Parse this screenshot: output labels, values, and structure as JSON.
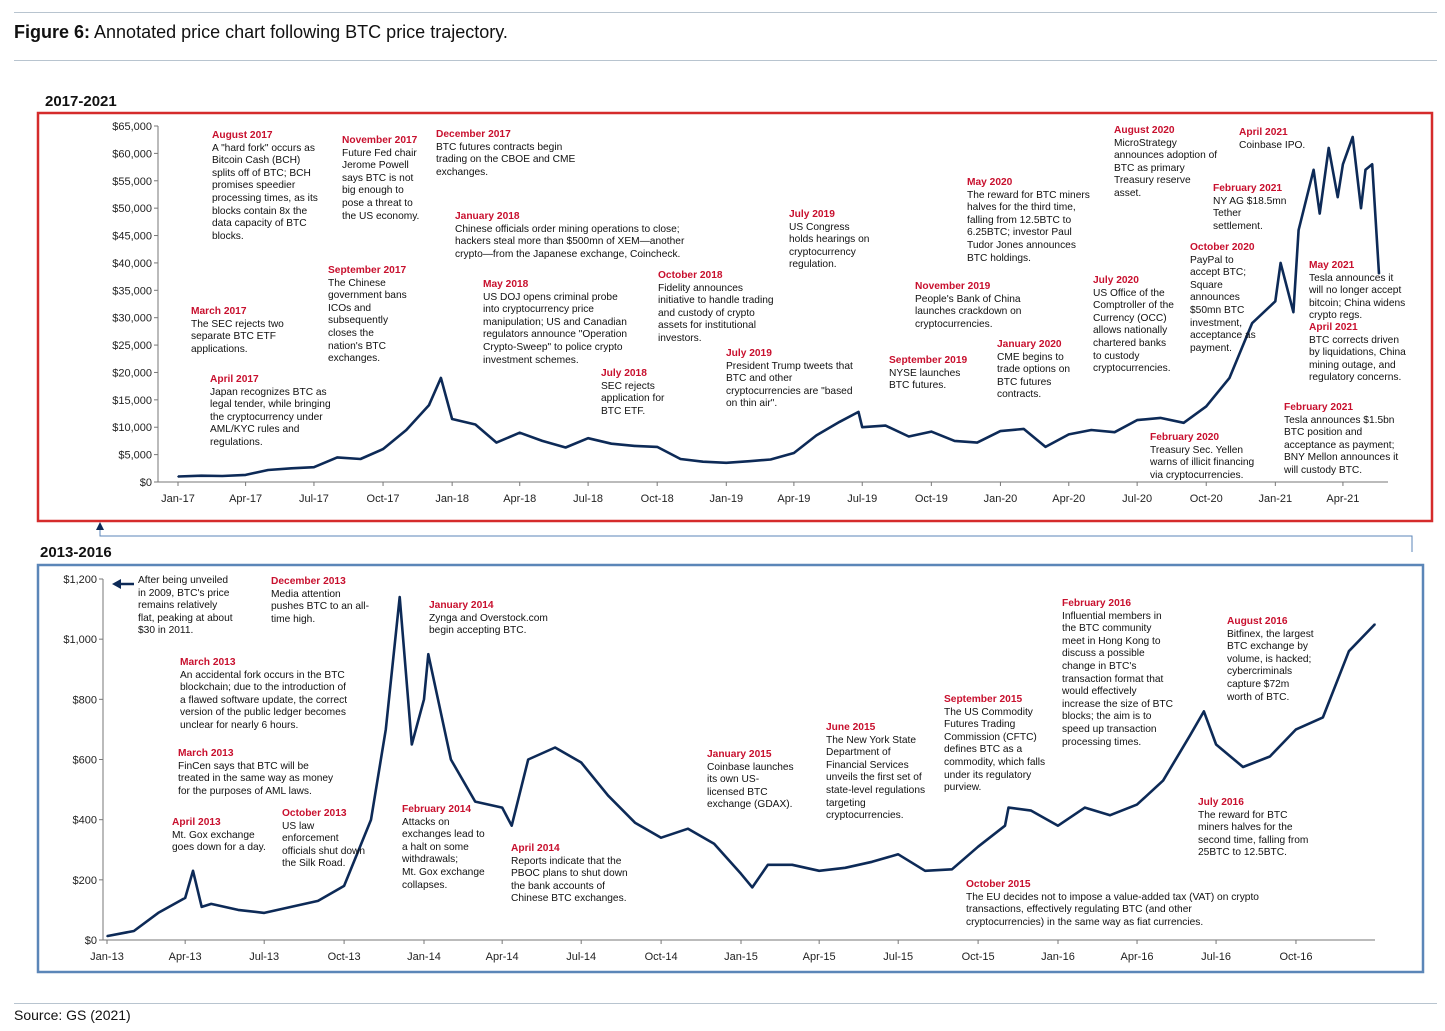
{
  "figure": {
    "label": "Figure 6:",
    "title": "Annotated price chart following BTC price trajectory.",
    "source": "Source: GS (2021)"
  },
  "colors": {
    "line": "#0d2a57",
    "annotation_date": "#c8102e",
    "top_border": "#d52b2b",
    "bottom_border": "#5b86b8"
  },
  "chart_data": [
    {
      "type": "line",
      "panel_label": "2017-2021",
      "x_ticks": [
        "Jan-17",
        "Apr-17",
        "Jul-17",
        "Oct-17",
        "Jan-18",
        "Apr-18",
        "Jul-18",
        "Oct-18",
        "Jan-19",
        "Apr-19",
        "Jul-19",
        "Oct-19",
        "Jan-20",
        "Apr-20",
        "Jul-20",
        "Oct-20",
        "Jan-21",
        "Apr-21"
      ],
      "y_ticks": [
        "$0",
        "$5,000",
        "$10,000",
        "$15,000",
        "$20,000",
        "$25,000",
        "$30,000",
        "$35,000",
        "$40,000",
        "$45,000",
        "$50,000",
        "$55,000",
        "$60,000",
        "$65,000"
      ],
      "ylim": [
        0,
        65000
      ],
      "xlim": [
        "2017-01",
        "2021-05"
      ],
      "series": [
        {
          "x": [
            "2017-01",
            "2017-02",
            "2017-03",
            "2017-04",
            "2017-05",
            "2017-06",
            "2017-07",
            "2017-08",
            "2017-09",
            "2017-10",
            "2017-11",
            "2017-12",
            "2017-12-17",
            "2018-01",
            "2018-02",
            "2018-03",
            "2018-04",
            "2018-05",
            "2018-06",
            "2018-07",
            "2018-08",
            "2018-09",
            "2018-10",
            "2018-11",
            "2018-12",
            "2019-01",
            "2019-02",
            "2019-03",
            "2019-04",
            "2019-05",
            "2019-06",
            "2019-06-26",
            "2019-07",
            "2019-08",
            "2019-09",
            "2019-10",
            "2019-11",
            "2019-12",
            "2020-01",
            "2020-02",
            "2020-03",
            "2020-04",
            "2020-05",
            "2020-06",
            "2020-07",
            "2020-08",
            "2020-09",
            "2020-10",
            "2020-11",
            "2020-12",
            "2021-01",
            "2021-01-08",
            "2021-01-25",
            "2021-02",
            "2021-02-21",
            "2021-03",
            "2021-03-13",
            "2021-03-25",
            "2021-04",
            "2021-04-14",
            "2021-04-25",
            "2021-05",
            "2021-05-10",
            "2021-05-19"
          ],
          "values": [
            1000,
            1150,
            1100,
            1300,
            2200,
            2500,
            2700,
            4500,
            4200,
            6000,
            9500,
            14000,
            19000,
            11500,
            10500,
            7200,
            9000,
            7500,
            6300,
            8000,
            7000,
            6600,
            6400,
            4200,
            3700,
            3500,
            3800,
            4100,
            5300,
            8500,
            11000,
            12800,
            10000,
            10300,
            8300,
            9200,
            7500,
            7200,
            9300,
            9700,
            6400,
            8700,
            9500,
            9100,
            11300,
            11700,
            10800,
            13800,
            19000,
            29000,
            33000,
            40000,
            31000,
            46000,
            57000,
            49000,
            61000,
            52000,
            58000,
            63000,
            50000,
            57000,
            58000,
            38000
          ]
        }
      ],
      "annotations": [
        {
          "date": "August 2017",
          "text": "A \"hard fork\" occurs as\nBitcoin Cash (BCH)\nsplits off of BTC; BCH\npromises speedier\nprocessing times, as its\nblocks contain 8x the\ndata capacity of BTC\nblocks."
        },
        {
          "date": "November 2017",
          "text": "Future Fed chair\nJerome Powell\nsays BTC is not\nbig enough to\npose a threat to\nthe US economy."
        },
        {
          "date": "December 2017",
          "text": "BTC futures contracts begin\ntrading on the CBOE and CME\nexchanges."
        },
        {
          "date": "January 2018",
          "text": "Chinese officials order mining operations to close;\nhackers steal more than $500mn of XEM—another\ncrypto—from the Japanese exchange, Coincheck."
        },
        {
          "date": "September 2017",
          "text": "The Chinese\ngovernment bans\nICOs and\nsubsequently\ncloses the\nnation's BTC\nexchanges."
        },
        {
          "date": "March  2017",
          "text": "The SEC rejects two\nseparate BTC ETF\napplications."
        },
        {
          "date": "April 2017",
          "text": "Japan recognizes BTC as\nlegal tender, while bringing\nthe cryptocurrency under\nAML/KYC rules and\nregulations."
        },
        {
          "date": "May 2018",
          "text": "US DOJ opens criminal probe\ninto cryptocurrency price\nmanipulation; US and Canadian\nregulators announce \"Operation\nCrypto-Sweep\" to police crypto\ninvestment schemes."
        },
        {
          "date": "July 2018",
          "text": "SEC rejects\napplication for\nBTC ETF."
        },
        {
          "date": "October 2018",
          "text": "Fidelity announces\ninitiative to handle trading\nand custody of crypto\nassets for institutional\ninvestors."
        },
        {
          "date": "July 2019",
          "text": "President Trump tweets that\nBTC and other\ncryptocurrencies are \"based\non thin air\"."
        },
        {
          "date": "July 2019",
          "text": "US Congress\nholds hearings on\ncryptocurrency\nregulation."
        },
        {
          "date": "September 2019",
          "text": "NYSE launches\nBTC futures."
        },
        {
          "date": "November 2019",
          "text": "People's Bank of China\nlaunches crackdown on\ncryptocurrencies."
        },
        {
          "date": "January 2020",
          "text": "CME begins to\ntrade options on\nBTC futures\ncontracts."
        },
        {
          "date": "May 2020",
          "text": "The reward for BTC miners\nhalves for the third time,\nfalling from 12.5BTC to\n6.25BTC; investor Paul\nTudor Jones announces\nBTC holdings."
        },
        {
          "date": "July 2020",
          "text": "US Office of the\nComptroller of the\nCurrency (OCC)\nallows nationally\nchartered banks\nto custody\ncryptocurrencies."
        },
        {
          "date": "August 2020",
          "text": "MicroStrategy\nannounces adoption of\nBTC as primary\nTreasury reserve\nasset."
        },
        {
          "date": "February 2020",
          "text": "Treasury Sec. Yellen\nwarns of illicit financing\nvia cryptocurrencies."
        },
        {
          "date": "October 2020",
          "text": "PayPal to\naccept BTC;\nSquare\nannounces\n$50mn BTC\ninvestment,\nacceptance as\npayment."
        },
        {
          "date": "February 2021",
          "text": "NY AG $18.5mn\nTether\nsettlement."
        },
        {
          "date": "April 2021",
          "text": "Coinbase IPO."
        },
        {
          "date": "May 2021",
          "text": "Tesla announces it\nwill no longer accept\nbitcoin; China widens\ncrypto regs."
        },
        {
          "date": "April 2021",
          "text": "BTC corrects driven\nby liquidations, China\nmining outage, and\nregulatory concerns."
        },
        {
          "date": "February 2021",
          "text": "Tesla announces $1.5bn\nBTC position and\nacceptance as payment;\nBNY Mellon announces it\nwill custody BTC."
        }
      ]
    },
    {
      "type": "line",
      "panel_label": "2013-2016",
      "x_ticks": [
        "Jan-13",
        "Apr-13",
        "Jul-13",
        "Oct-13",
        "Jan-14",
        "Apr-14",
        "Jul-14",
        "Oct-14",
        "Jan-15",
        "Apr-15",
        "Jul-15",
        "Oct-15",
        "Jan-16",
        "Apr-16",
        "Jul-16",
        "Oct-16"
      ],
      "y_ticks": [
        "$0",
        "$200",
        "$400",
        "$600",
        "$800",
        "$1,000",
        "$1,200"
      ],
      "ylim": [
        0,
        1200
      ],
      "xlim": [
        "2013-01",
        "2016-12-31"
      ],
      "series": [
        {
          "x": [
            "2013-01",
            "2013-02",
            "2013-03",
            "2013-04",
            "2013-04-10",
            "2013-04-20",
            "2013-05",
            "2013-06",
            "2013-07",
            "2013-08",
            "2013-09",
            "2013-10",
            "2013-11",
            "2013-11-18",
            "2013-12-04",
            "2013-12-18",
            "2014-01",
            "2014-01-06",
            "2014-02",
            "2014-03",
            "2014-04",
            "2014-04-12",
            "2014-05",
            "2014-06",
            "2014-07",
            "2014-08",
            "2014-09",
            "2014-10",
            "2014-11",
            "2014-12",
            "2015-01",
            "2015-01-14",
            "2015-02",
            "2015-03",
            "2015-04",
            "2015-05",
            "2015-06",
            "2015-07",
            "2015-08",
            "2015-09",
            "2015-10",
            "2015-11",
            "2015-11-05",
            "2015-12",
            "2016-01",
            "2016-02",
            "2016-03",
            "2016-04",
            "2016-05",
            "2016-06",
            "2016-06-17",
            "2016-07",
            "2016-08",
            "2016-09",
            "2016-10",
            "2016-11",
            "2016-12",
            "2016-12-31"
          ],
          "values": [
            13,
            30,
            90,
            140,
            230,
            110,
            120,
            100,
            90,
            110,
            130,
            180,
            400,
            700,
            1140,
            650,
            800,
            950,
            600,
            460,
            440,
            380,
            600,
            640,
            590,
            480,
            390,
            340,
            370,
            320,
            220,
            175,
            250,
            250,
            230,
            240,
            260,
            285,
            230,
            235,
            310,
            380,
            440,
            430,
            380,
            440,
            415,
            450,
            530,
            680,
            760,
            650,
            575,
            610,
            700,
            740,
            960,
            1050
          ]
        }
      ],
      "annotations": [
        {
          "date": "",
          "text": "After being unveiled\nin 2009, BTC's price\nremains relatively\nflat, peaking at about\n$30 in 2011."
        },
        {
          "date": "December 2013",
          "text": "Media attention\npushes BTC to an all-\ntime high."
        },
        {
          "date": "January  2014",
          "text": "Zynga and Overstock.com\nbegin accepting BTC."
        },
        {
          "date": "March 2013",
          "text": "An accidental fork occurs in the BTC\nblockchain; due to the introduction of\na flawed software update, the correct\nversion of the public ledger becomes\nunclear for nearly 6 hours."
        },
        {
          "date": "March 2013",
          "text": "FinCen says that BTC will be\ntreated in the same way as money\nfor the purposes of AML laws."
        },
        {
          "date": "April 2013",
          "text": "Mt. Gox exchange\ngoes down for a day."
        },
        {
          "date": "October 2013",
          "text": "US law\nenforcement\nofficials shut down\nthe Silk Road."
        },
        {
          "date": "February 2014",
          "text": "Attacks on\nexchanges lead to\na halt on some\nwithdrawals;\nMt. Gox exchange\ncollapses."
        },
        {
          "date": "April 2014",
          "text": "Reports indicate that the\nPBOC plans to shut down\nthe bank accounts of\nChinese BTC exchanges."
        },
        {
          "date": "January 2015",
          "text": "Coinbase launches\nits own US-\nlicensed BTC\nexchange (GDAX)."
        },
        {
          "date": "June 2015",
          "text": "The New York State\nDepartment of\nFinancial Services\nunveils the first set of\nstate-level regulations\ntargeting\ncryptocurrencies."
        },
        {
          "date": "September 2015",
          "text": "The US Commodity\nFutures Trading\nCommission (CFTC)\ndefines BTC as a\ncommodity, which falls\nunder its regulatory\npurview."
        },
        {
          "date": "October 2015",
          "text": "The EU decides not to impose a value-added tax (VAT) on crypto\ntransactions, effectively regulating BTC (and other\ncryptocurrencies) in the same way as fiat currencies."
        },
        {
          "date": "February 2016",
          "text": "Influential members in\nthe BTC community\nmeet in Hong Kong to\ndiscuss a possible\nchange in BTC's\ntransaction format that\nwould effectively\nincrease the size of BTC\nblocks; the aim is to\nspeed up transaction\nprocessing times."
        },
        {
          "date": "August 2016",
          "text": "Bitfinex, the largest\nBTC exchange by\nvolume, is hacked;\ncybercriminals\ncapture $72m\nworth of BTC."
        },
        {
          "date": "July 2016",
          "text": "The reward for BTC\nminers halves for the\nsecond time, falling from\n25BTC to 12.5BTC."
        }
      ]
    }
  ]
}
